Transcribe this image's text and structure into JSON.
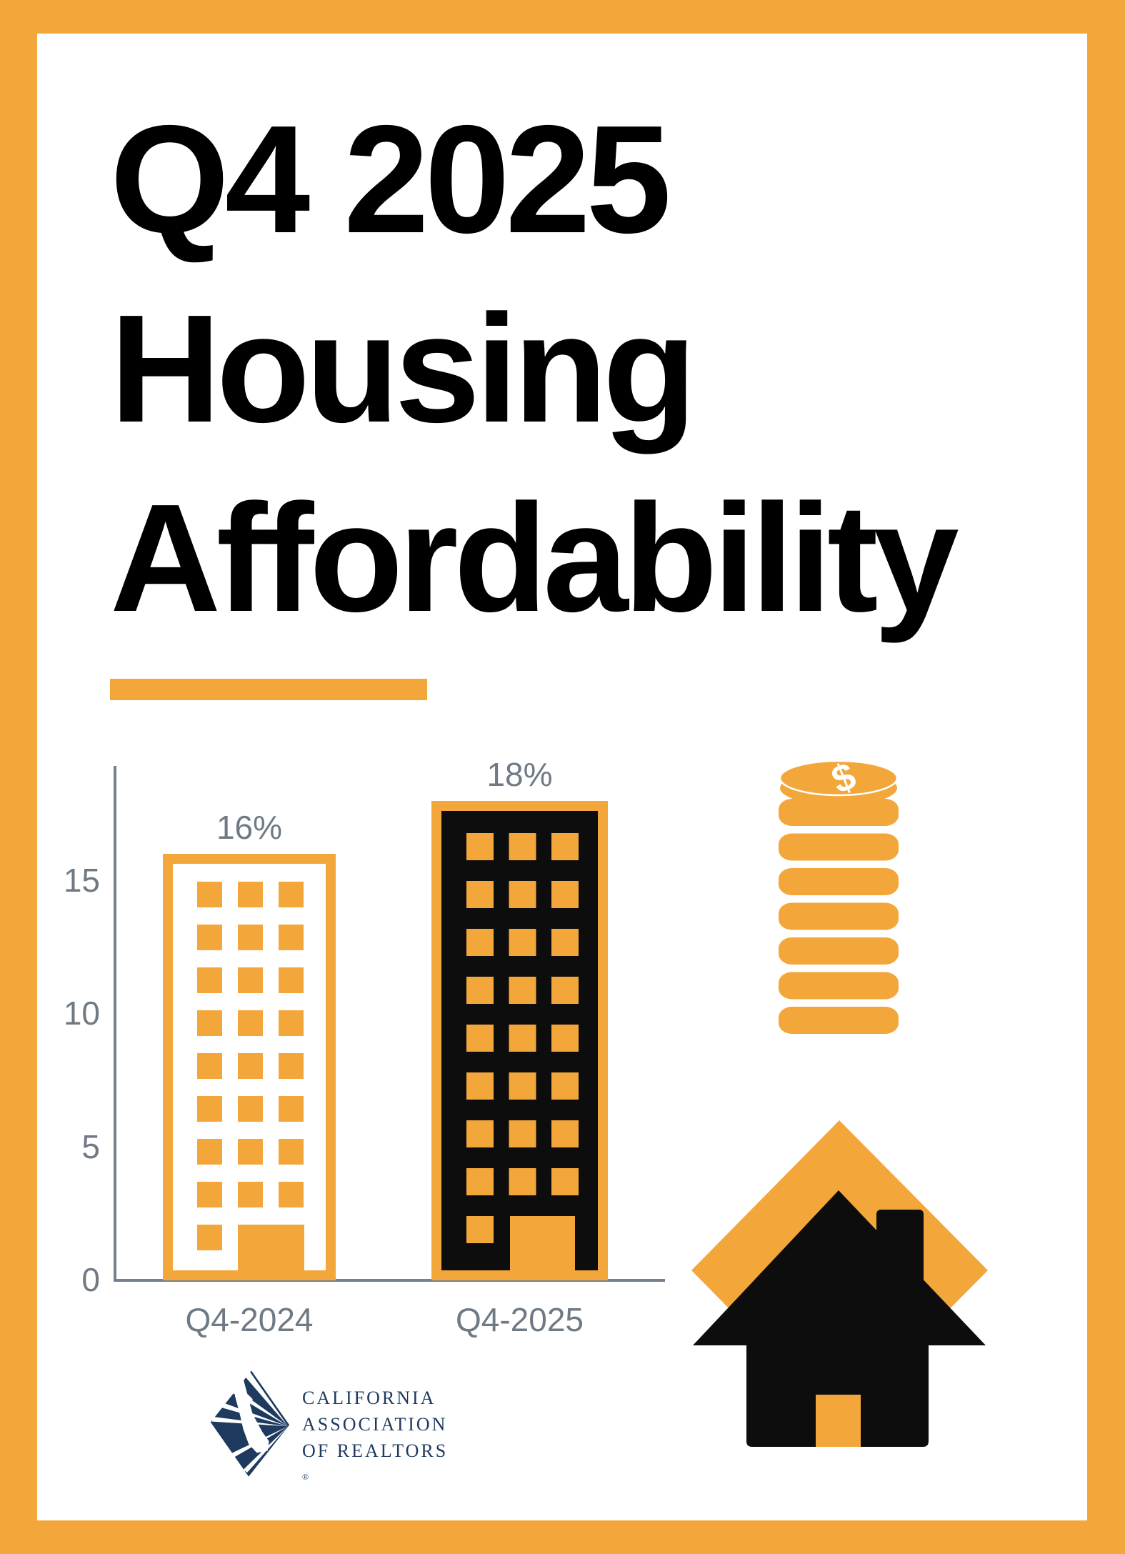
{
  "title": {
    "lines": [
      "Q4 2025",
      "Housing",
      "Affordability"
    ]
  },
  "chart_data": {
    "type": "bar",
    "title": "",
    "categories": [
      "Q4-2024",
      "Q4-2025"
    ],
    "values": [
      16,
      18
    ],
    "data_labels": [
      "16%",
      "18%"
    ],
    "y_ticks": [
      0,
      5,
      10,
      15
    ],
    "ylim": [
      0,
      19
    ],
    "xlabel": "",
    "ylabel": "",
    "grid": false,
    "legend": false,
    "bar_style": "building-icon",
    "bar_colors": [
      "#FFFFFF outlined #F3A73B",
      "#0D0D0D outlined #F3A73B"
    ]
  },
  "icons": {
    "dollar_sign": "$",
    "coin_stack": "coin-stack",
    "house": "house-with-diamond"
  },
  "logo": {
    "lines": [
      "CALIFORNIA",
      "ASSOCIATION",
      "OF REALTORS"
    ],
    "registered_mark": "®"
  },
  "colors": {
    "accent_orange": "#F3A73B",
    "building_black": "#0D0D0D",
    "axis_gray": "#75808C",
    "label_gray": "#6F7A85",
    "logo_navy": "#1E3A5F",
    "background": "#FFFFFF"
  }
}
